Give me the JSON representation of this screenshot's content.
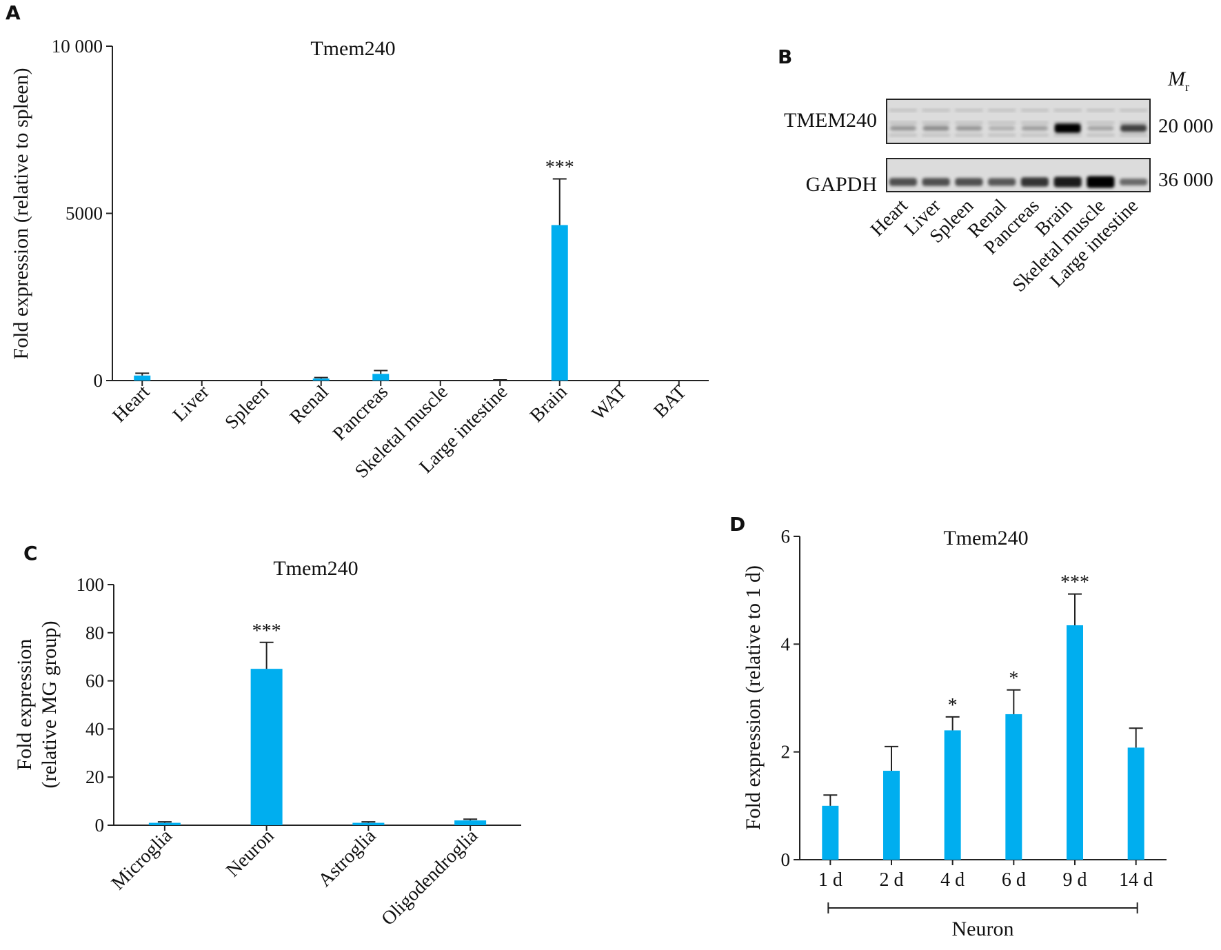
{
  "colors": {
    "bar": "#00AEEF",
    "ink": "#111111",
    "blot_bg": "#d9d9d9"
  },
  "chart_data": [
    {
      "panel": "A",
      "type": "bar",
      "title": "Tmem240",
      "ylabel": "Fold expression (relative to spleen)",
      "xlabel": "",
      "ylim": [
        0,
        10000
      ],
      "yticks": [
        0,
        5000,
        10000
      ],
      "ytick_labels": [
        "0",
        "5000",
        "10 000"
      ],
      "categories": [
        "Heart",
        "Liver",
        "Spleen",
        "Renal",
        "Pancreas",
        "Skeletal muscle",
        "Large intestine",
        "Brain",
        "WAT",
        "BAT"
      ],
      "values": [
        150,
        0,
        0,
        60,
        200,
        0,
        0,
        4650,
        0,
        0
      ],
      "errors": [
        70,
        0,
        0,
        30,
        100,
        0,
        20,
        1380,
        0,
        0
      ],
      "significance": [
        "",
        "",
        "",
        "",
        "",
        "",
        "",
        "***",
        "",
        ""
      ],
      "grid": false,
      "legend": "none"
    },
    {
      "panel": "C",
      "type": "bar",
      "title": "Tmem240",
      "ylabel": [
        "Fold expression",
        "(relative MG group)"
      ],
      "xlabel": "",
      "ylim": [
        0,
        100
      ],
      "yticks": [
        0,
        20,
        40,
        60,
        80,
        100
      ],
      "ytick_labels": [
        "0",
        "20",
        "40",
        "60",
        "80",
        "100"
      ],
      "categories": [
        "Microglia",
        "Neuron",
        "Astroglia",
        "Oligodendroglia"
      ],
      "values": [
        1,
        65,
        1,
        2
      ],
      "errors": [
        0.4,
        11,
        0.4,
        0.5
      ],
      "significance": [
        "",
        "***",
        "",
        ""
      ],
      "grid": false,
      "legend": "none"
    },
    {
      "panel": "D",
      "type": "bar",
      "title": "Tmem240",
      "ylabel": "Fold expression (relative to 1 d)",
      "xlabel": "Neuron",
      "ylim": [
        0,
        6
      ],
      "yticks": [
        0,
        2,
        4,
        6
      ],
      "ytick_labels": [
        "0",
        "2",
        "4",
        "6"
      ],
      "categories": [
        "1 d",
        "2 d",
        "4 d",
        "6 d",
        "9 d",
        "14 d"
      ],
      "values": [
        1.0,
        1.65,
        2.4,
        2.7,
        4.35,
        2.08
      ],
      "errors": [
        0.2,
        0.45,
        0.25,
        0.45,
        0.58,
        0.36
      ],
      "significance": [
        "",
        "",
        "*",
        "*",
        "***",
        ""
      ],
      "grid": false,
      "legend": "none"
    }
  ],
  "blot": {
    "panel": "B",
    "mr_label": "M",
    "mr_sub": "r",
    "rows": [
      {
        "name": "TMEM240",
        "mw": "20 000"
      },
      {
        "name": "GAPDH",
        "mw": "36 000"
      }
    ],
    "lanes": [
      "Heart",
      "Liver",
      "Spleen",
      "Renal",
      "Pancreas",
      "Brain",
      "Skeletal muscle",
      "Large intestine"
    ],
    "tmem240_intensity": [
      0.15,
      0.2,
      0.15,
      0.05,
      0.12,
      0.95,
      0.1,
      0.55
    ],
    "gapdh_intensity": [
      0.55,
      0.55,
      0.55,
      0.5,
      0.7,
      0.85,
      1.0,
      0.4
    ]
  }
}
